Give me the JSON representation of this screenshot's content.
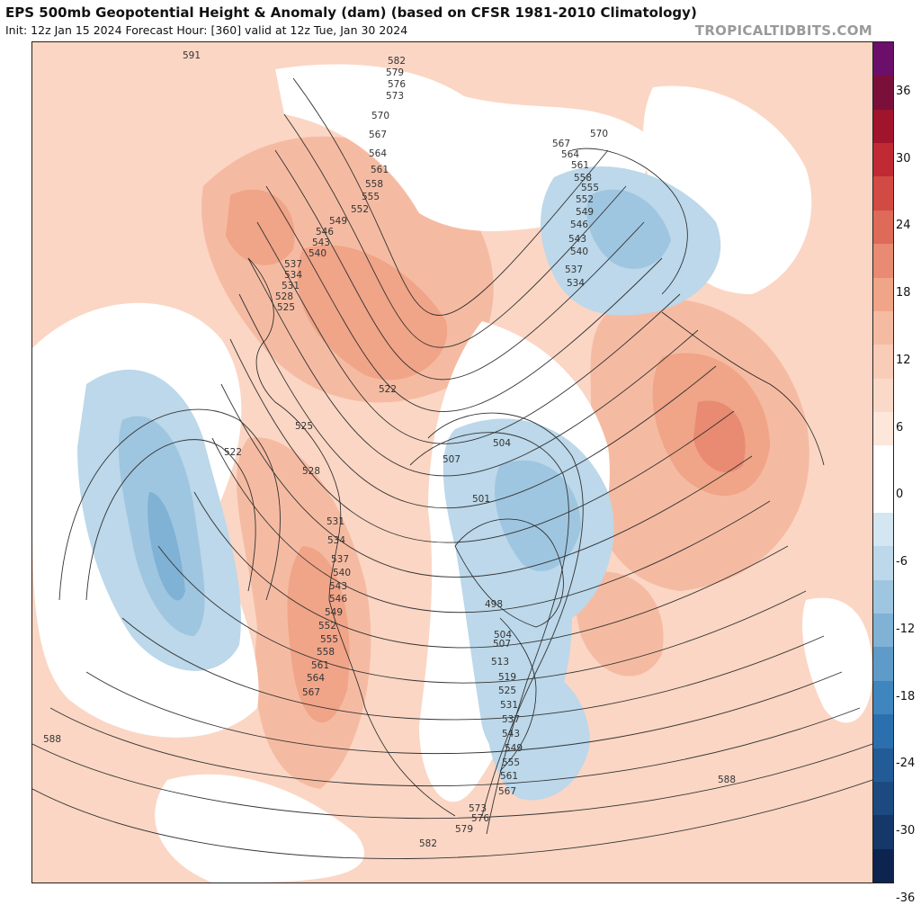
{
  "header": {
    "title": "EPS 500mb Geopotential Height & Anomaly (dam) (based on CFSR 1981-2010 Climatology)",
    "subtitle": "Init: 12z Jan 15 2024   Forecast Hour: [360]   valid at 12z Tue, Jan 30 2024",
    "brand": "TROPICALTIDBITS.COM"
  },
  "colorbar": {
    "ticks": [
      "36",
      "30",
      "24",
      "18",
      "12",
      "6",
      "0",
      "-6",
      "-12",
      "-18",
      "-24",
      "-30",
      "-36"
    ],
    "colors": {
      "c36": "#6b0f6b",
      "c33": "#7a0f3a",
      "c30": "#a0142c",
      "c27": "#bf2a34",
      "c24": "#d24a44",
      "c21": "#de6a58",
      "c18": "#e98a72",
      "c15": "#f0a488",
      "c12": "#f5bba2",
      "c9": "#f8ccb6",
      "c6": "#fbd9c8",
      "c3": "#fde6da",
      "c0": "#ffffff",
      "n3": "#ffffff",
      "n6": "#d3e6f1",
      "n9": "#bcd8ea",
      "n12": "#9fc6e0",
      "n15": "#7fb2d5",
      "n18": "#5e9bc9",
      "n21": "#3f85be",
      "n24": "#2c6fae",
      "n27": "#235b96",
      "n30": "#1c4a80",
      "n33": "#15376a",
      "n36": "#0d2350"
    }
  },
  "map": {
    "background": "#fbd6c4",
    "contour_labels": [
      "591",
      "582",
      "579",
      "576",
      "573",
      "570",
      "567",
      "564",
      "561",
      "558",
      "555",
      "552",
      "549",
      "546",
      "543",
      "540",
      "537",
      "534",
      "531",
      "528",
      "525",
      "522",
      "507",
      "504",
      "501",
      "498",
      "513",
      "519",
      "588"
    ]
  }
}
